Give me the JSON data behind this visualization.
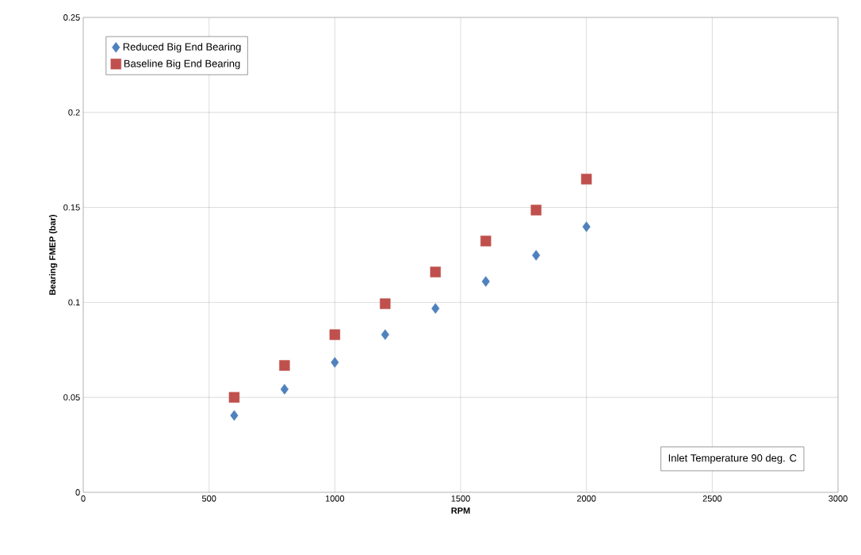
{
  "chart_data": {
    "type": "scatter",
    "xlabel": "RPM",
    "ylabel": "Bearing FMEP (bar)",
    "x": [
      600,
      800,
      1000,
      1200,
      1400,
      1600,
      1800,
      2000
    ],
    "series": [
      {
        "name": "Reduced Big End Bearing",
        "color": "#4f81bd",
        "marker": "diamond",
        "values": [
          0.0405,
          0.0543,
          0.0684,
          0.083,
          0.0968,
          0.111,
          0.1248,
          0.1398
        ]
      },
      {
        "name": "Baseline Big End Bearing",
        "color": "#c0504d",
        "marker": "square",
        "values": [
          0.05,
          0.0668,
          0.083,
          0.0993,
          0.116,
          0.1323,
          0.1486,
          0.1649
        ]
      }
    ],
    "xlim": [
      0,
      3000
    ],
    "ylim": [
      0,
      0.25
    ],
    "xticks": [
      0,
      500,
      1000,
      1500,
      2000,
      2500,
      3000
    ],
    "yticks": [
      0,
      0.05,
      0.1,
      0.15,
      0.2,
      0.25
    ],
    "grid": true,
    "legend": "top left",
    "annotations": [
      "Inlet Temperature 90 deg. C"
    ]
  }
}
